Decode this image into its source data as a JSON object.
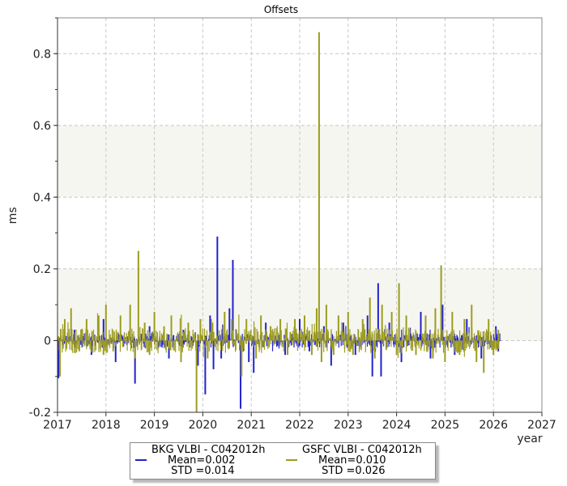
{
  "chart_data": {
    "type": "line",
    "title": "Offsets",
    "xlabel": "year",
    "ylabel": "ms",
    "xlim": [
      2017,
      2027
    ],
    "ylim": [
      -0.2,
      0.9
    ],
    "x_ticks": [
      "2017",
      "2018",
      "2019",
      "2020",
      "2021",
      "2022",
      "2023",
      "2024",
      "2025",
      "2026",
      "2027"
    ],
    "y_ticks": [
      "-0.2",
      "0",
      "0.2",
      "0.4",
      "0.6",
      "0.8"
    ],
    "bands": [
      [
        0.0,
        0.2
      ],
      [
        0.4,
        0.6
      ]
    ],
    "grid": true,
    "legend_position": "bottom",
    "series": [
      {
        "name": "BKG VLBI - C042012h",
        "mean_label": "Mean=0.002",
        "std_label": " STD =0.014",
        "color": "#2222cc",
        "spikes": [
          [
            2017.02,
            -0.105
          ],
          [
            2017.35,
            0.03
          ],
          [
            2017.7,
            -0.04
          ],
          [
            2017.95,
            0.06
          ],
          [
            2018.2,
            -0.06
          ],
          [
            2018.6,
            -0.12
          ],
          [
            2018.9,
            0.04
          ],
          [
            2019.3,
            -0.05
          ],
          [
            2019.6,
            0.03
          ],
          [
            2019.9,
            -0.07
          ],
          [
            2020.05,
            -0.15
          ],
          [
            2020.15,
            0.07
          ],
          [
            2020.22,
            -0.08
          ],
          [
            2020.3,
            0.29
          ],
          [
            2020.38,
            -0.05
          ],
          [
            2020.55,
            0.09
          ],
          [
            2020.62,
            0.225
          ],
          [
            2020.78,
            -0.19
          ],
          [
            2020.95,
            -0.06
          ],
          [
            2021.05,
            -0.09
          ],
          [
            2021.3,
            0.05
          ],
          [
            2021.7,
            -0.04
          ],
          [
            2022.0,
            0.06
          ],
          [
            2022.2,
            -0.03
          ],
          [
            2022.5,
            0.04
          ],
          [
            2022.65,
            -0.07
          ],
          [
            2022.9,
            0.05
          ],
          [
            2023.15,
            -0.04
          ],
          [
            2023.4,
            0.07
          ],
          [
            2023.5,
            -0.1
          ],
          [
            2023.62,
            0.16
          ],
          [
            2023.68,
            -0.1
          ],
          [
            2023.85,
            0.05
          ],
          [
            2024.1,
            -0.06
          ],
          [
            2024.5,
            0.08
          ],
          [
            2024.7,
            -0.05
          ],
          [
            2024.95,
            0.1
          ],
          [
            2025.2,
            -0.04
          ],
          [
            2025.45,
            0.06
          ],
          [
            2025.75,
            -0.05
          ],
          [
            2026.05,
            0.04
          ],
          [
            2026.1,
            -0.03
          ]
        ]
      },
      {
        "name": "GSFC VLBI - C042012h",
        "mean_label": "Mean=0.010",
        "std_label": " STD =0.026",
        "color": "#9c9c20",
        "spikes": [
          [
            2017.05,
            -0.1
          ],
          [
            2017.15,
            0.06
          ],
          [
            2017.28,
            0.09
          ],
          [
            2017.45,
            -0.03
          ],
          [
            2017.6,
            0.06
          ],
          [
            2017.85,
            0.07
          ],
          [
            2017.95,
            -0.04
          ],
          [
            2018.0,
            0.1
          ],
          [
            2018.15,
            -0.03
          ],
          [
            2018.3,
            0.07
          ],
          [
            2018.5,
            0.1
          ],
          [
            2018.6,
            -0.05
          ],
          [
            2018.67,
            0.25
          ],
          [
            2018.8,
            0.05
          ],
          [
            2018.9,
            -0.04
          ],
          [
            2019.0,
            0.08
          ],
          [
            2019.2,
            0.04
          ],
          [
            2019.35,
            0.07
          ],
          [
            2019.55,
            -0.06
          ],
          [
            2019.7,
            0.05
          ],
          [
            2019.87,
            -0.2
          ],
          [
            2019.95,
            0.06
          ],
          [
            2020.1,
            -0.05
          ],
          [
            2020.2,
            0.05
          ],
          [
            2020.45,
            0.08
          ],
          [
            2020.6,
            0.06
          ],
          [
            2020.8,
            -0.1
          ],
          [
            2020.9,
            0.06
          ],
          [
            2021.1,
            -0.05
          ],
          [
            2021.2,
            0.07
          ],
          [
            2021.4,
            0.04
          ],
          [
            2021.6,
            0.06
          ],
          [
            2021.75,
            -0.04
          ],
          [
            2021.9,
            0.06
          ],
          [
            2022.1,
            0.07
          ],
          [
            2022.25,
            -0.04
          ],
          [
            2022.35,
            0.09
          ],
          [
            2022.4,
            0.86
          ],
          [
            2022.45,
            -0.06
          ],
          [
            2022.55,
            0.1
          ],
          [
            2022.7,
            -0.04
          ],
          [
            2022.8,
            0.07
          ],
          [
            2023.0,
            0.08
          ],
          [
            2023.1,
            -0.04
          ],
          [
            2023.3,
            0.06
          ],
          [
            2023.45,
            0.12
          ],
          [
            2023.55,
            -0.05
          ],
          [
            2023.7,
            0.1
          ],
          [
            2023.9,
            0.08
          ],
          [
            2024.0,
            -0.04
          ],
          [
            2024.05,
            0.16
          ],
          [
            2024.2,
            0.07
          ],
          [
            2024.4,
            -0.04
          ],
          [
            2024.6,
            0.07
          ],
          [
            2024.75,
            -0.05
          ],
          [
            2024.8,
            0.09
          ],
          [
            2024.92,
            0.21
          ],
          [
            2025.0,
            -0.06
          ],
          [
            2025.15,
            0.08
          ],
          [
            2025.3,
            -0.04
          ],
          [
            2025.4,
            0.06
          ],
          [
            2025.55,
            0.1
          ],
          [
            2025.65,
            -0.06
          ],
          [
            2025.8,
            -0.09
          ],
          [
            2025.9,
            0.06
          ],
          [
            2026.0,
            -0.04
          ],
          [
            2026.1,
            0.03
          ]
        ]
      }
    ]
  }
}
